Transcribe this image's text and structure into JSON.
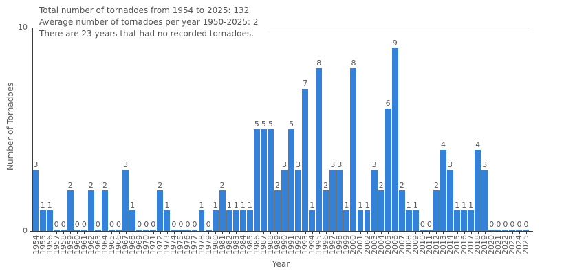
{
  "colors": {
    "background": "#ffffff",
    "bar": "#3381d8",
    "text": "#595959",
    "annotation_text": "#555555",
    "spine": "#3c3c3c",
    "gridline": "#cccccc"
  },
  "chart_data": {
    "type": "bar",
    "title": "",
    "xlabel": "Year",
    "ylabel": "Number of Tornadoes",
    "ylim": [
      0,
      10
    ],
    "ytick_labels": [
      "10",
      "0"
    ],
    "grid": "single horizontal gridline at y=10",
    "legend": "none",
    "bar_color": "#3381d8",
    "annotation_lines": [
      "Total number of tornadoes from 1954 to 2025: 132",
      "Average number of tornadoes per year 1950-2025: 2",
      "There are 23 years that had no recorded tornadoes."
    ],
    "categories": [
      1954,
      1955,
      1956,
      1957,
      1958,
      1959,
      1960,
      1961,
      1962,
      1963,
      1964,
      1965,
      1966,
      1967,
      1968,
      1969,
      1970,
      1971,
      1972,
      1973,
      1974,
      1975,
      1976,
      1977,
      1978,
      1979,
      1980,
      1981,
      1982,
      1983,
      1984,
      1985,
      1986,
      1987,
      1988,
      1989,
      1990,
      1991,
      1992,
      1993,
      1994,
      1995,
      1996,
      1997,
      1998,
      1999,
      2000,
      2001,
      2002,
      2003,
      2004,
      2005,
      2006,
      2007,
      2008,
      2009,
      2010,
      2011,
      2012,
      2013,
      2014,
      2015,
      2016,
      2017,
      2018,
      2019,
      2020,
      2021,
      2022,
      2023,
      2024,
      2025
    ],
    "values": [
      3,
      1,
      1,
      0,
      0,
      2,
      0,
      0,
      2,
      0,
      2,
      0,
      0,
      3,
      1,
      0,
      0,
      0,
      2,
      1,
      0,
      0,
      0,
      0,
      1,
      0,
      1,
      2,
      1,
      1,
      1,
      1,
      5,
      5,
      5,
      2,
      3,
      5,
      3,
      7,
      1,
      8,
      2,
      3,
      3,
      1,
      8,
      1,
      1,
      3,
      2,
      6,
      9,
      2,
      1,
      1,
      0,
      0,
      2,
      4,
      3,
      1,
      1,
      1,
      4,
      3,
      0,
      0,
      0,
      0,
      0,
      0
    ]
  }
}
